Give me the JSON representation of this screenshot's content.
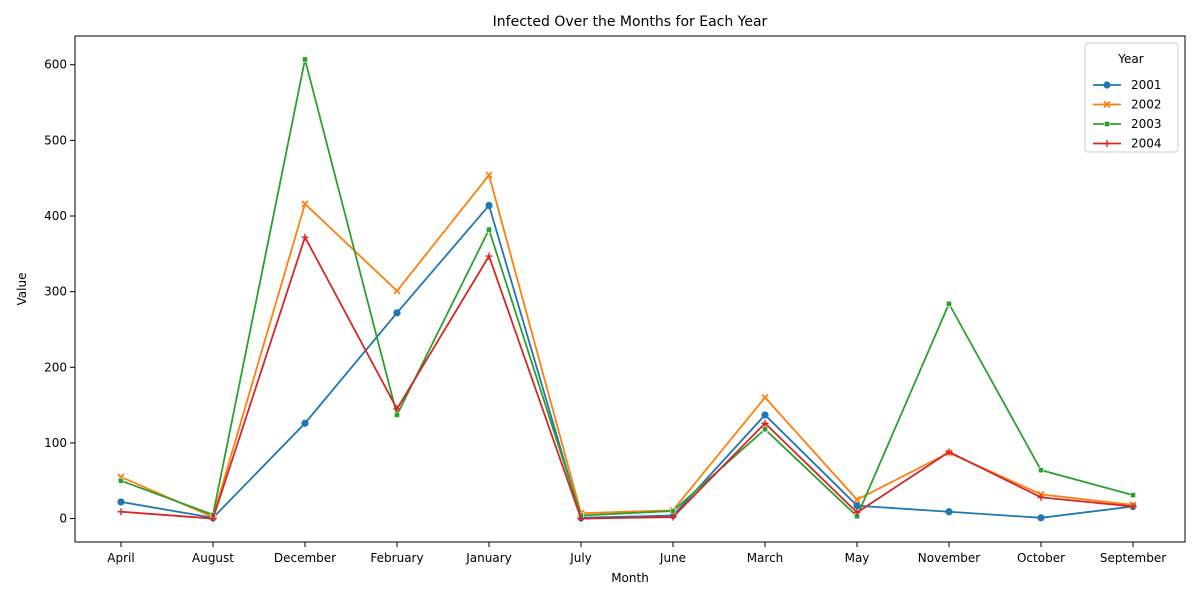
{
  "chart_data": {
    "type": "line",
    "title": "Infected Over the Months for Each Year",
    "xlabel": "Month",
    "ylabel": "Value",
    "categories": [
      "April",
      "August",
      "December",
      "February",
      "January",
      "July",
      "June",
      "March",
      "May",
      "November",
      "October",
      "September"
    ],
    "ylim": [
      -31,
      638
    ],
    "yticks": [
      0,
      100,
      200,
      300,
      400,
      500,
      600
    ],
    "grid": false,
    "legend": {
      "title": "Year",
      "placement": "top-right"
    },
    "series": [
      {
        "name": "2001",
        "color": "#1f77b4",
        "marker": "circle",
        "values": [
          22,
          1,
          126,
          272,
          414,
          1,
          4,
          137,
          17,
          9,
          1,
          16
        ]
      },
      {
        "name": "2002",
        "color": "#ff7f0e",
        "marker": "x",
        "values": [
          55,
          2,
          416,
          301,
          454,
          7,
          11,
          160,
          25,
          87,
          32,
          18
        ]
      },
      {
        "name": "2003",
        "color": "#2ca02c",
        "marker": "square",
        "values": [
          50,
          5,
          607,
          137,
          382,
          4,
          10,
          118,
          3,
          284,
          64,
          31
        ]
      },
      {
        "name": "2004",
        "color": "#d62728",
        "marker": "plus",
        "values": [
          9,
          0,
          372,
          145,
          347,
          0,
          2,
          126,
          8,
          88,
          28,
          16
        ]
      }
    ]
  }
}
